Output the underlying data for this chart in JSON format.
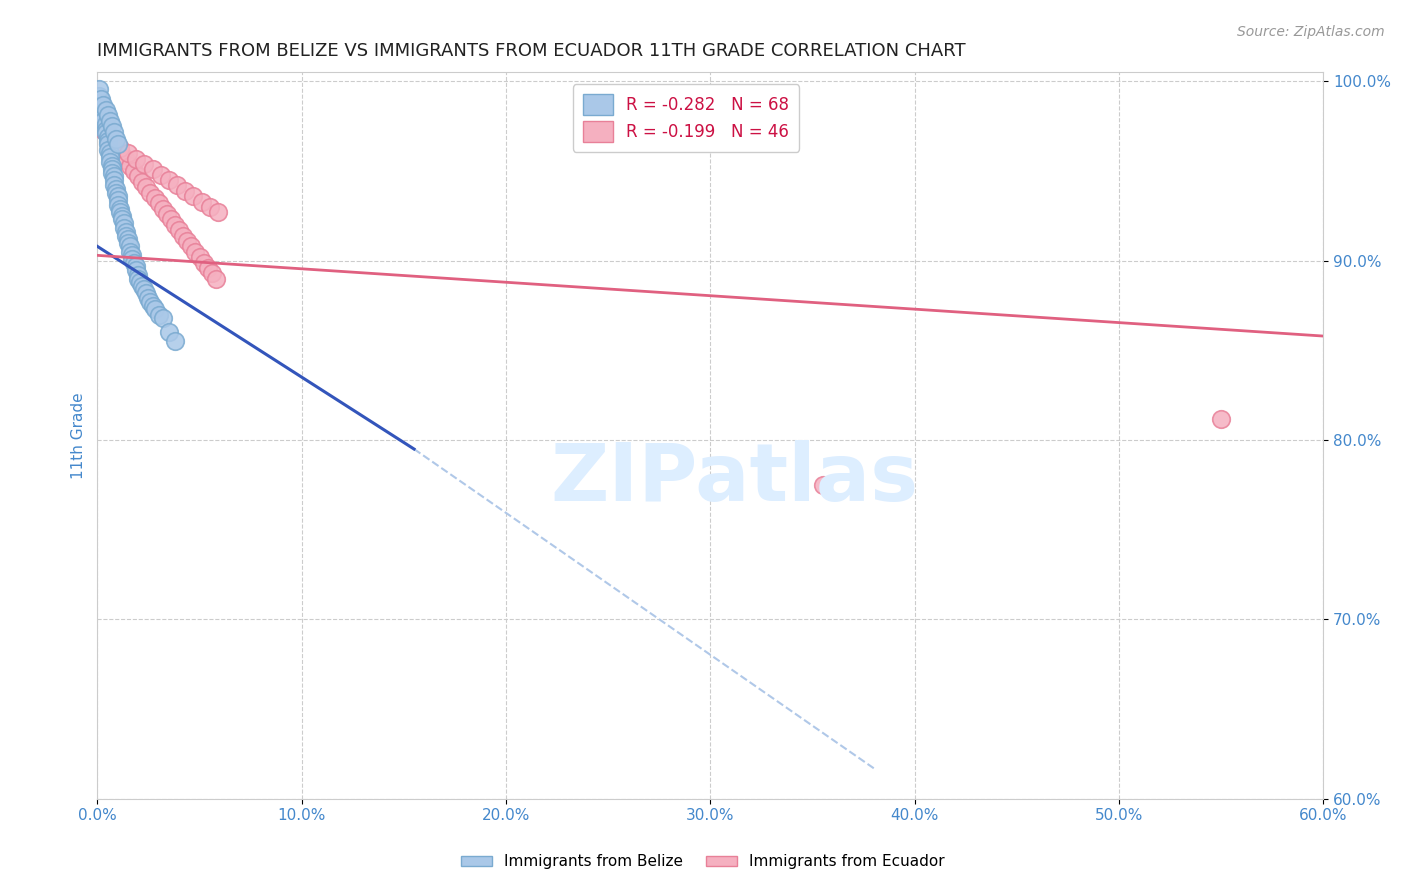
{
  "title": "IMMIGRANTS FROM BELIZE VS IMMIGRANTS FROM ECUADOR 11TH GRADE CORRELATION CHART",
  "source": "Source: ZipAtlas.com",
  "ylabel": "11th Grade",
  "xlim": [
    0.0,
    0.6
  ],
  "ylim": [
    0.6,
    1.005
  ],
  "xtick_labels": [
    "0.0%",
    "10.0%",
    "20.0%",
    "30.0%",
    "40.0%",
    "50.0%",
    "60.0%"
  ],
  "xtick_vals": [
    0.0,
    0.1,
    0.2,
    0.3,
    0.4,
    0.5,
    0.6
  ],
  "ytick_labels": [
    "60.0%",
    "70.0%",
    "80.0%",
    "90.0%",
    "100.0%"
  ],
  "ytick_vals": [
    0.6,
    0.7,
    0.8,
    0.9,
    1.0
  ],
  "belize_color": "#aac8e8",
  "ecuador_color": "#f5b0c0",
  "belize_edge_color": "#7aaad0",
  "ecuador_edge_color": "#e88098",
  "belize_line_color": "#3355bb",
  "ecuador_line_color": "#e06080",
  "diagonal_line_color": "#b0c8e8",
  "watermark_color": "#ddeeff",
  "title_color": "#222222",
  "axis_color": "#4488cc",
  "legend_belize_label": "R = -0.282   N = 68",
  "legend_ecuador_label": "R = -0.199   N = 46",
  "bottom_label_belize": "Immigrants from Belize",
  "bottom_label_ecuador": "Immigrants from Ecuador",
  "belize_x": [
    0.001,
    0.002,
    0.002,
    0.003,
    0.003,
    0.003,
    0.004,
    0.004,
    0.004,
    0.005,
    0.005,
    0.005,
    0.005,
    0.006,
    0.006,
    0.006,
    0.007,
    0.007,
    0.007,
    0.008,
    0.008,
    0.008,
    0.009,
    0.009,
    0.01,
    0.01,
    0.01,
    0.011,
    0.011,
    0.012,
    0.012,
    0.013,
    0.013,
    0.014,
    0.014,
    0.015,
    0.015,
    0.016,
    0.016,
    0.017,
    0.017,
    0.018,
    0.019,
    0.019,
    0.02,
    0.02,
    0.021,
    0.022,
    0.023,
    0.024,
    0.025,
    0.026,
    0.027,
    0.028,
    0.03,
    0.032,
    0.035,
    0.038,
    0.001,
    0.002,
    0.003,
    0.004,
    0.005,
    0.006,
    0.007,
    0.008,
    0.009,
    0.01
  ],
  "belize_y": [
    0.992,
    0.988,
    0.985,
    0.983,
    0.98,
    0.978,
    0.976,
    0.973,
    0.971,
    0.969,
    0.967,
    0.965,
    0.962,
    0.96,
    0.958,
    0.955,
    0.953,
    0.951,
    0.949,
    0.947,
    0.945,
    0.942,
    0.94,
    0.938,
    0.936,
    0.934,
    0.931,
    0.929,
    0.927,
    0.925,
    0.923,
    0.921,
    0.918,
    0.916,
    0.914,
    0.912,
    0.91,
    0.908,
    0.905,
    0.903,
    0.901,
    0.899,
    0.897,
    0.895,
    0.892,
    0.89,
    0.888,
    0.886,
    0.884,
    0.882,
    0.879,
    0.877,
    0.875,
    0.873,
    0.87,
    0.868,
    0.86,
    0.855,
    0.996,
    0.99,
    0.987,
    0.984,
    0.981,
    0.978,
    0.975,
    0.972,
    0.968,
    0.965
  ],
  "ecuador_x": [
    0.002,
    0.004,
    0.006,
    0.008,
    0.01,
    0.012,
    0.014,
    0.016,
    0.018,
    0.02,
    0.022,
    0.024,
    0.026,
    0.028,
    0.03,
    0.032,
    0.034,
    0.036,
    0.038,
    0.04,
    0.042,
    0.044,
    0.046,
    0.048,
    0.05,
    0.052,
    0.054,
    0.056,
    0.058,
    0.003,
    0.007,
    0.011,
    0.015,
    0.019,
    0.023,
    0.027,
    0.031,
    0.035,
    0.039,
    0.043,
    0.047,
    0.051,
    0.055,
    0.059,
    0.55,
    0.355
  ],
  "ecuador_y": [
    0.975,
    0.972,
    0.968,
    0.965,
    0.962,
    0.959,
    0.956,
    0.953,
    0.95,
    0.947,
    0.944,
    0.941,
    0.938,
    0.935,
    0.932,
    0.929,
    0.926,
    0.923,
    0.92,
    0.917,
    0.914,
    0.911,
    0.908,
    0.905,
    0.902,
    0.899,
    0.896,
    0.893,
    0.89,
    0.973,
    0.966,
    0.963,
    0.96,
    0.957,
    0.954,
    0.951,
    0.948,
    0.945,
    0.942,
    0.939,
    0.936,
    0.933,
    0.93,
    0.927,
    0.812,
    0.775
  ],
  "belize_line_x": [
    0.0,
    0.155
  ],
  "belize_line_y": [
    0.908,
    0.795
  ],
  "ecuador_line_x": [
    0.0,
    0.6
  ],
  "ecuador_line_y": [
    0.903,
    0.858
  ],
  "diag_line_x": [
    0.155,
    0.38
  ],
  "diag_line_y": [
    0.795,
    0.617
  ]
}
